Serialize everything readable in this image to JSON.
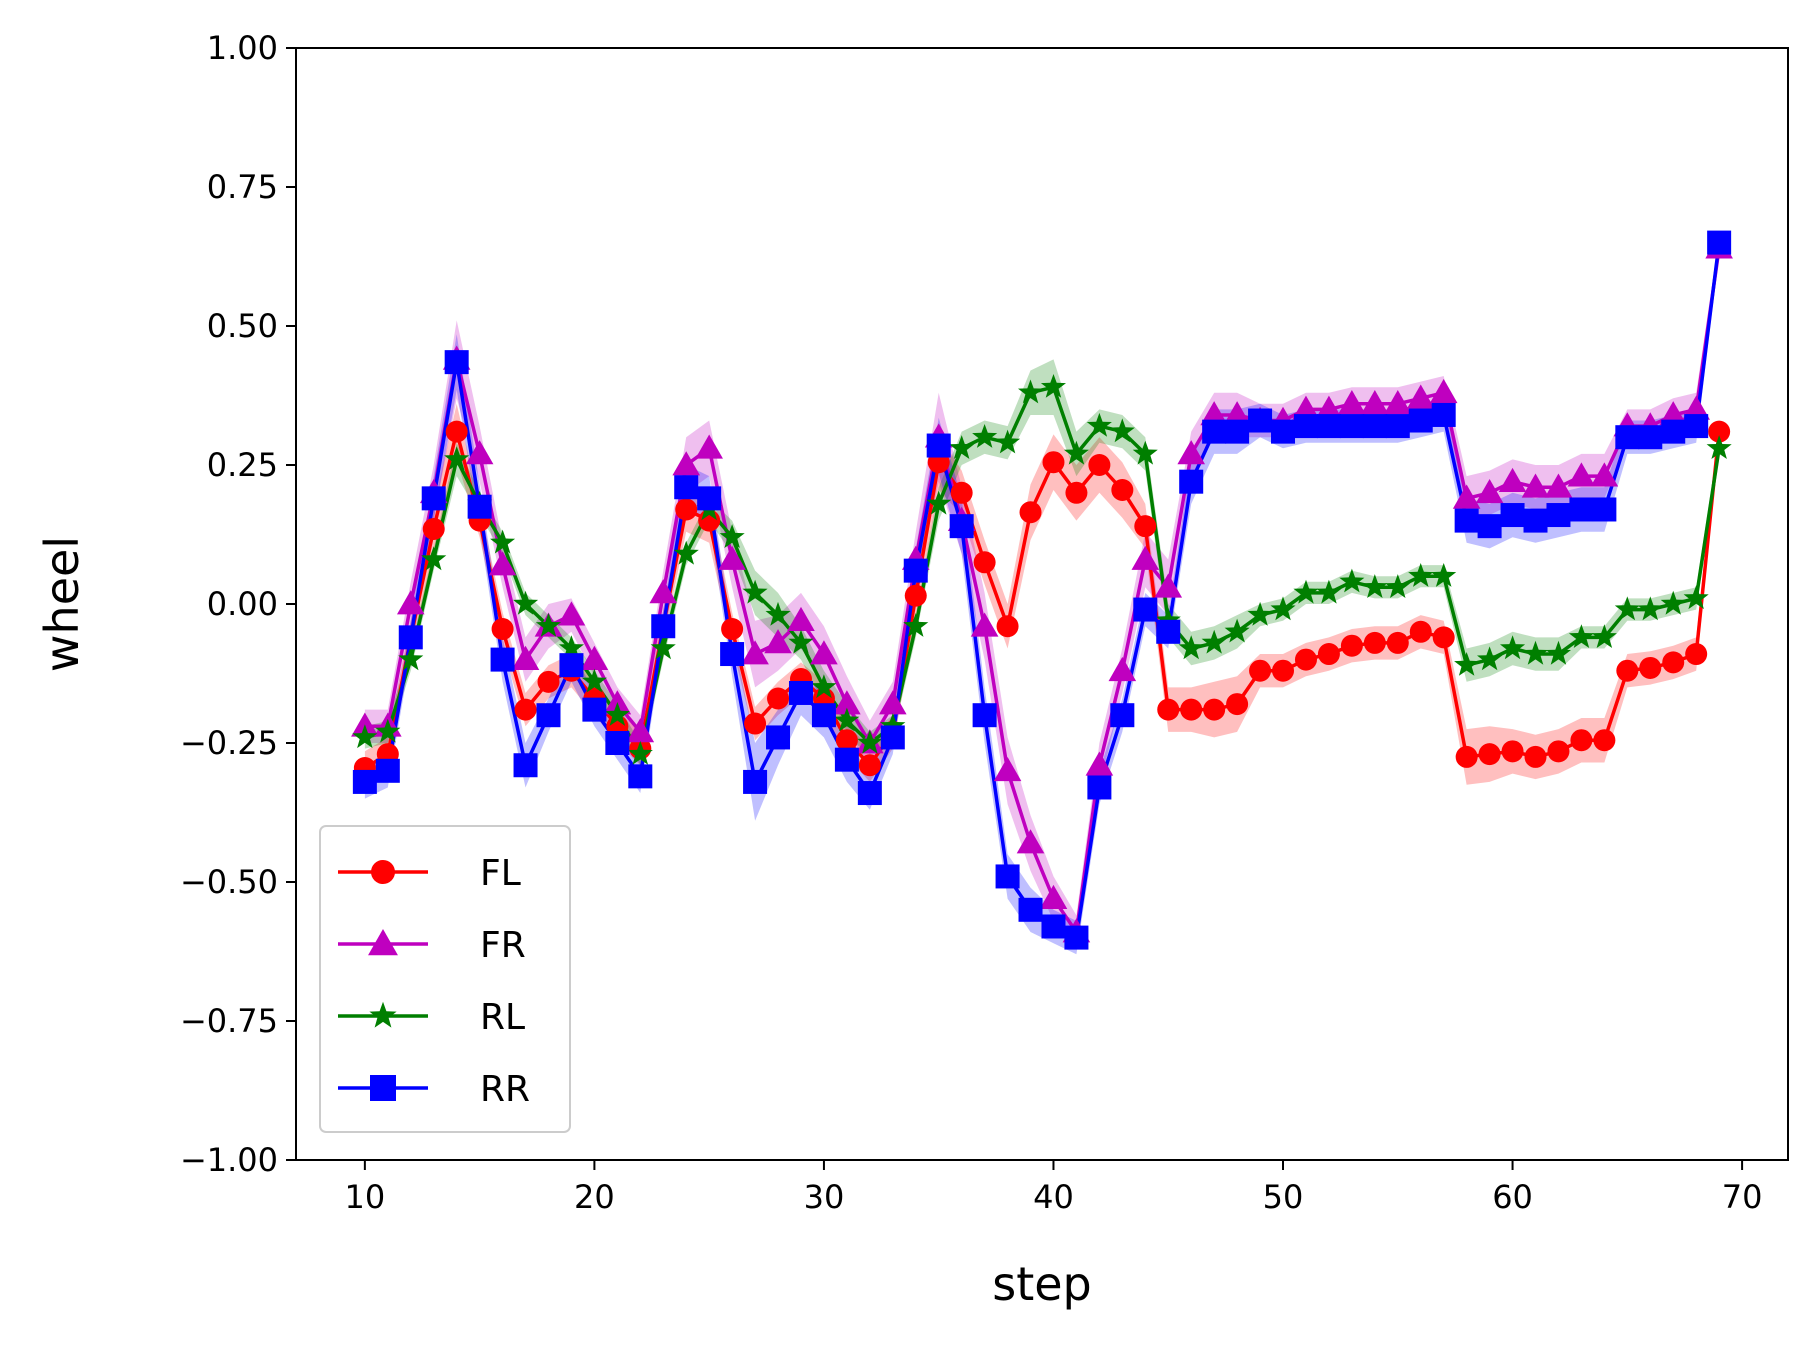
{
  "chart_data": {
    "type": "line",
    "xlabel": "step",
    "ylabel": "wheel",
    "xlim": [
      7,
      72
    ],
    "ylim": [
      -1.0,
      1.0
    ],
    "xticks": [
      "10",
      "20",
      "30",
      "40",
      "50",
      "60",
      "70"
    ],
    "xtick_values": [
      10,
      20,
      30,
      40,
      50,
      60,
      70
    ],
    "yticks": [
      "1.00",
      "0.75",
      "0.50",
      "0.25",
      "0.00",
      "−0.25",
      "−0.50",
      "−0.75",
      "−1.00"
    ],
    "ytick_values": [
      1.0,
      0.75,
      0.5,
      0.25,
      0.0,
      -0.25,
      -0.5,
      -0.75,
      -1.0
    ],
    "grid": false,
    "legend_position": "lower-left",
    "shaded_band": "mean ± spread per series",
    "x": [
      10,
      11,
      12,
      13,
      14,
      15,
      16,
      17,
      18,
      19,
      20,
      21,
      22,
      23,
      24,
      25,
      26,
      27,
      28,
      29,
      30,
      31,
      32,
      33,
      34,
      35,
      36,
      37,
      38,
      39,
      40,
      41,
      42,
      43,
      44,
      45,
      46,
      47,
      48,
      49,
      50,
      51,
      52,
      53,
      54,
      55,
      56,
      57,
      58,
      59,
      60,
      61,
      62,
      63,
      64,
      65,
      66,
      67,
      68,
      69
    ],
    "series": [
      {
        "name": "FL",
        "color": "#ff0000",
        "marker": "circle",
        "values": [
          -0.295,
          -0.27,
          -0.06,
          0.135,
          0.31,
          0.15,
          -0.045,
          -0.19,
          -0.14,
          -0.12,
          -0.17,
          -0.22,
          -0.26,
          -0.04,
          0.17,
          0.15,
          -0.045,
          -0.215,
          -0.17,
          -0.135,
          -0.17,
          -0.245,
          -0.29,
          -0.23,
          0.015,
          0.255,
          0.2,
          0.075,
          -0.04,
          0.165,
          0.255,
          0.2,
          0.25,
          0.205,
          0.14,
          -0.19,
          -0.19,
          -0.19,
          -0.18,
          -0.12,
          -0.12,
          -0.1,
          -0.09,
          -0.075,
          -0.07,
          -0.07,
          -0.05,
          -0.06,
          -0.275,
          -0.27,
          -0.265,
          -0.275,
          -0.265,
          -0.245,
          -0.245,
          -0.12,
          -0.115,
          -0.105,
          -0.09,
          0.31
        ],
        "spread": [
          0.03,
          0.03,
          0.03,
          0.04,
          0.05,
          0.03,
          0.03,
          0.03,
          0.03,
          0.03,
          0.03,
          0.03,
          0.03,
          0.03,
          0.04,
          0.04,
          0.03,
          0.03,
          0.03,
          0.03,
          0.03,
          0.03,
          0.03,
          0.03,
          0.04,
          0.05,
          0.04,
          0.04,
          0.04,
          0.05,
          0.05,
          0.05,
          0.05,
          0.05,
          0.04,
          0.04,
          0.04,
          0.05,
          0.05,
          0.03,
          0.03,
          0.03,
          0.03,
          0.03,
          0.03,
          0.03,
          0.03,
          0.03,
          0.05,
          0.05,
          0.04,
          0.04,
          0.04,
          0.04,
          0.04,
          0.03,
          0.03,
          0.03,
          0.03,
          0.02
        ]
      },
      {
        "name": "FR",
        "color": "#bf00bf",
        "marker": "triangle",
        "values": [
          -0.22,
          -0.22,
          0.0,
          0.2,
          0.44,
          0.27,
          0.07,
          -0.1,
          -0.04,
          -0.02,
          -0.1,
          -0.18,
          -0.23,
          0.02,
          0.25,
          0.28,
          0.08,
          -0.09,
          -0.07,
          -0.03,
          -0.09,
          -0.18,
          -0.25,
          -0.18,
          0.08,
          0.3,
          0.15,
          -0.04,
          -0.3,
          -0.43,
          -0.53,
          -0.59,
          -0.29,
          -0.12,
          0.08,
          0.03,
          0.27,
          0.34,
          0.34,
          0.33,
          0.33,
          0.35,
          0.35,
          0.36,
          0.36,
          0.36,
          0.37,
          0.38,
          0.19,
          0.2,
          0.22,
          0.21,
          0.21,
          0.23,
          0.23,
          0.32,
          0.32,
          0.34,
          0.35,
          0.64
        ],
        "spread": [
          0.03,
          0.03,
          0.04,
          0.05,
          0.07,
          0.05,
          0.04,
          0.04,
          0.04,
          0.03,
          0.03,
          0.03,
          0.03,
          0.04,
          0.05,
          0.05,
          0.05,
          0.06,
          0.05,
          0.05,
          0.05,
          0.05,
          0.04,
          0.04,
          0.05,
          0.08,
          0.06,
          0.06,
          0.06,
          0.05,
          0.04,
          0.03,
          0.04,
          0.04,
          0.05,
          0.05,
          0.04,
          0.04,
          0.04,
          0.03,
          0.03,
          0.03,
          0.03,
          0.03,
          0.03,
          0.03,
          0.03,
          0.03,
          0.04,
          0.04,
          0.04,
          0.04,
          0.04,
          0.04,
          0.04,
          0.03,
          0.03,
          0.03,
          0.03,
          0.02
        ]
      },
      {
        "name": "RL",
        "color": "#007f00",
        "marker": "star",
        "values": [
          -0.24,
          -0.23,
          -0.1,
          0.08,
          0.26,
          0.18,
          0.11,
          0.0,
          -0.04,
          -0.08,
          -0.14,
          -0.2,
          -0.27,
          -0.08,
          0.09,
          0.17,
          0.12,
          0.02,
          -0.02,
          -0.07,
          -0.15,
          -0.21,
          -0.25,
          -0.22,
          -0.04,
          0.18,
          0.28,
          0.3,
          0.29,
          0.38,
          0.39,
          0.27,
          0.32,
          0.31,
          0.27,
          -0.03,
          -0.08,
          -0.07,
          -0.05,
          -0.02,
          -0.01,
          0.02,
          0.02,
          0.04,
          0.03,
          0.03,
          0.05,
          0.05,
          -0.11,
          -0.1,
          -0.08,
          -0.09,
          -0.09,
          -0.06,
          -0.06,
          -0.01,
          -0.01,
          0.0,
          0.01,
          0.28
        ],
        "spread": [
          0.02,
          0.02,
          0.02,
          0.02,
          0.03,
          0.02,
          0.02,
          0.02,
          0.02,
          0.02,
          0.02,
          0.02,
          0.02,
          0.02,
          0.02,
          0.02,
          0.03,
          0.04,
          0.04,
          0.03,
          0.03,
          0.03,
          0.02,
          0.02,
          0.02,
          0.03,
          0.03,
          0.03,
          0.03,
          0.04,
          0.05,
          0.04,
          0.03,
          0.03,
          0.03,
          0.03,
          0.03,
          0.03,
          0.03,
          0.02,
          0.02,
          0.02,
          0.02,
          0.02,
          0.02,
          0.02,
          0.02,
          0.02,
          0.03,
          0.03,
          0.03,
          0.03,
          0.03,
          0.02,
          0.02,
          0.02,
          0.02,
          0.02,
          0.02,
          0.02
        ]
      },
      {
        "name": "RR",
        "color": "#0000ff",
        "marker": "square",
        "values": [
          -0.32,
          -0.3,
          -0.06,
          0.19,
          0.435,
          0.175,
          -0.1,
          -0.29,
          -0.2,
          -0.11,
          -0.19,
          -0.25,
          -0.31,
          -0.04,
          0.21,
          0.19,
          -0.09,
          -0.32,
          -0.24,
          -0.16,
          -0.2,
          -0.28,
          -0.34,
          -0.24,
          0.06,
          0.285,
          0.14,
          -0.2,
          -0.49,
          -0.55,
          -0.58,
          -0.6,
          -0.33,
          -0.2,
          -0.01,
          -0.05,
          0.22,
          0.31,
          0.31,
          0.33,
          0.31,
          0.32,
          0.32,
          0.32,
          0.32,
          0.32,
          0.33,
          0.34,
          0.15,
          0.14,
          0.16,
          0.15,
          0.16,
          0.17,
          0.17,
          0.3,
          0.3,
          0.31,
          0.32,
          0.65
        ],
        "spread": [
          0.03,
          0.03,
          0.03,
          0.04,
          0.05,
          0.04,
          0.04,
          0.04,
          0.03,
          0.03,
          0.03,
          0.03,
          0.03,
          0.03,
          0.04,
          0.04,
          0.04,
          0.07,
          0.05,
          0.04,
          0.04,
          0.04,
          0.03,
          0.03,
          0.04,
          0.05,
          0.05,
          0.05,
          0.04,
          0.04,
          0.03,
          0.03,
          0.03,
          0.03,
          0.03,
          0.03,
          0.04,
          0.04,
          0.04,
          0.03,
          0.03,
          0.03,
          0.03,
          0.03,
          0.03,
          0.03,
          0.03,
          0.03,
          0.04,
          0.04,
          0.04,
          0.04,
          0.04,
          0.04,
          0.04,
          0.03,
          0.03,
          0.03,
          0.03,
          0.02
        ]
      }
    ]
  }
}
